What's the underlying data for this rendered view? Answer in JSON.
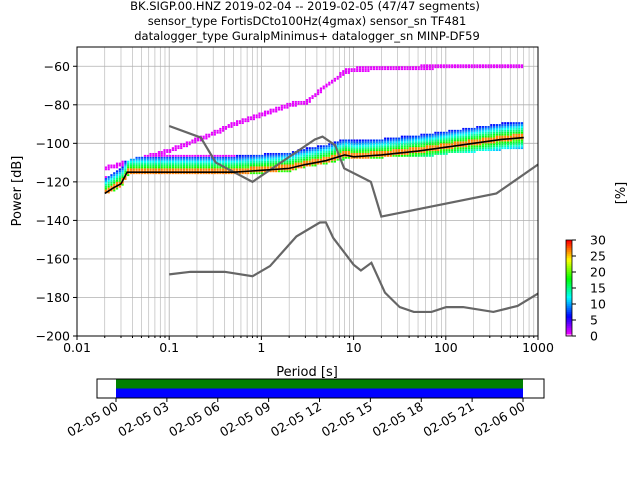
{
  "chart_data": {
    "type": "heatmap",
    "title_lines": [
      "BK.SIGP.00.HNZ   2019-02-04 -- 2019-02-05  (47/47 segments)",
      "sensor_type FortisDCto100Hz(4gmax) sensor_sn TF481",
      "datalogger_type GuralpMinimus+ datalogger_sn MINP-DF59"
    ],
    "xlabel": "Period [s]",
    "ylabel": "Power [dB]",
    "xscale": "log",
    "xlim": [
      0.01,
      1000
    ],
    "ylim": [
      -200,
      -50
    ],
    "xticks": [
      0.01,
      0.1,
      1,
      10,
      100,
      1000
    ],
    "xtick_labels": [
      "0.01",
      "0.1",
      "1",
      "10",
      "100",
      "1000"
    ],
    "yticks": [
      -200,
      -180,
      -160,
      -140,
      -120,
      -100,
      -80,
      -60
    ],
    "ytick_labels": [
      "−200",
      "−180",
      "−160",
      "−140",
      "−120",
      "−100",
      "−80",
      "−60"
    ],
    "grid": true,
    "noise_models": [
      {
        "name": "NHNM",
        "color": "#666666",
        "periods": [
          0.1,
          0.22,
          0.32,
          0.8,
          3.8,
          4.6,
          6.3,
          7.9,
          15.4,
          20,
          354,
          1000
        ],
        "db": [
          -91,
          -97,
          -110,
          -120,
          -98,
          -96.5,
          -101,
          -113,
          -120,
          -138,
          -126,
          -111
        ]
      },
      {
        "name": "NLNM",
        "color": "#666666",
        "periods": [
          0.1,
          0.17,
          0.4,
          0.8,
          1.24,
          2.4,
          4.3,
          5,
          6,
          10,
          12,
          15.6,
          21.9,
          31.6,
          45,
          70,
          101,
          154,
          328,
          600,
          1000
        ],
        "db": [
          -168,
          -166.7,
          -166.7,
          -169,
          -163.7,
          -148.3,
          -141.1,
          -141,
          -149,
          -163,
          -166,
          -162,
          -177.5,
          -185,
          -187.5,
          -187.5,
          -185,
          -185,
          -187.5,
          -184.4,
          -178
        ]
      }
    ],
    "ppsd": {
      "periods": [
        0.02,
        0.025,
        0.03,
        0.035,
        0.1,
        0.3,
        0.5,
        1,
        2,
        3,
        5,
        8,
        10,
        20,
        50,
        100,
        200,
        400,
        700
      ],
      "mean_db": [
        -126,
        -123,
        -121,
        -115,
        -115,
        -115,
        -115,
        -114,
        -113,
        -111,
        -109,
        -106,
        -107,
        -106,
        -104,
        -102,
        -100,
        -98,
        -97
      ],
      "lower_db": [
        -126,
        -124,
        -122,
        -116,
        -116,
        -116,
        -116,
        -115,
        -114,
        -112,
        -110,
        -108,
        -108,
        -107,
        -107,
        -105,
        -104,
        -103,
        -103
      ],
      "upper_db": [
        -113,
        -112,
        -111,
        -110,
        -104,
        -95,
        -90,
        -85,
        -80,
        -79,
        -70,
        -63,
        -62,
        -61,
        -61,
        -60,
        -60,
        -60,
        -60
      ]
    },
    "colorbar": {
      "label": "[%]",
      "ticks": [
        "0",
        "5",
        "10",
        "15",
        "20",
        "25",
        "30"
      ],
      "range": [
        0,
        30
      ],
      "colormap": [
        "#ffffff",
        "#ff00ff",
        "#0000ff",
        "#00ffff",
        "#00ff00",
        "#ffff00",
        "#ff0000"
      ]
    },
    "time_axis": {
      "tick_labels": [
        "02-05 00",
        "02-05 03",
        "02-05 06",
        "02-05 09",
        "02-05 12",
        "02-05 15",
        "02-05 18",
        "02-05 21",
        "02-06 00"
      ],
      "coverage_colors": {
        "data": "#008000",
        "used": "#0000ff"
      }
    }
  }
}
